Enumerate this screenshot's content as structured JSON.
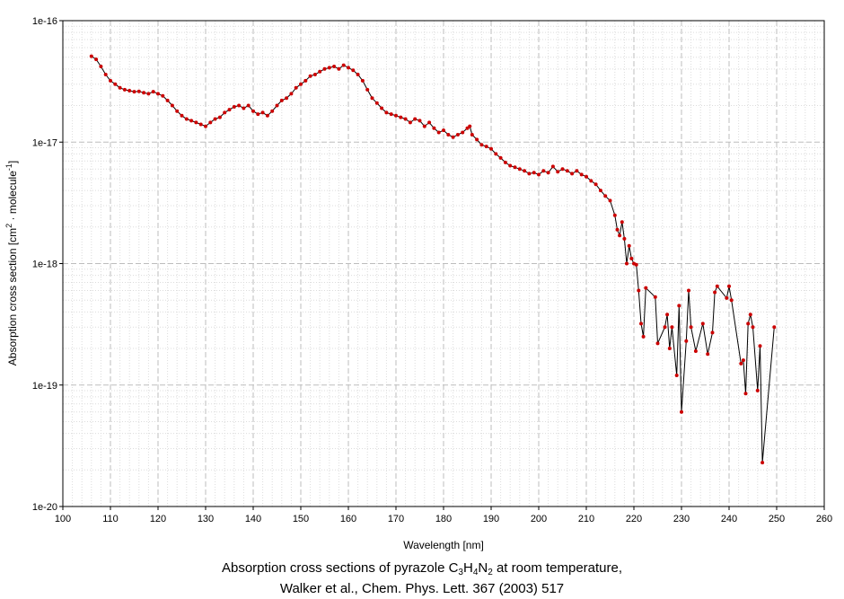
{
  "chart_data": {
    "type": "line",
    "xlabel": "Wavelength [nm]",
    "ylabel_main": "Absorption cross section [cm",
    "ylabel_sup1": "2",
    "ylabel_mid": " · molecule",
    "ylabel_sup2": "-1",
    "ylabel_end": "]",
    "xlim": [
      100,
      260
    ],
    "ylim": [
      1e-20,
      1e-16
    ],
    "yscale": "log",
    "grid": true,
    "x_ticks": [
      "100",
      "110",
      "120",
      "130",
      "140",
      "150",
      "160",
      "170",
      "180",
      "190",
      "200",
      "210",
      "220",
      "230",
      "240",
      "250",
      "260"
    ],
    "y_ticks": [
      "1e-20",
      "1e-19",
      "1e-18",
      "1e-17",
      "1e-16"
    ],
    "series": [
      {
        "name": "",
        "color": "#cc0000",
        "line_color": "#000000",
        "points": [
          [
            106,
            5.1e-17
          ],
          [
            107,
            4.8e-17
          ],
          [
            108,
            4.2e-17
          ],
          [
            109,
            3.6e-17
          ],
          [
            110,
            3.2e-17
          ],
          [
            111,
            3e-17
          ],
          [
            112,
            2.8e-17
          ],
          [
            113,
            2.7e-17
          ],
          [
            114,
            2.65e-17
          ],
          [
            115,
            2.6e-17
          ],
          [
            116,
            2.62e-17
          ],
          [
            117,
            2.55e-17
          ],
          [
            118,
            2.5e-17
          ],
          [
            119,
            2.6e-17
          ],
          [
            120,
            2.5e-17
          ],
          [
            121,
            2.4e-17
          ],
          [
            122,
            2.2e-17
          ],
          [
            123,
            2e-17
          ],
          [
            124,
            1.8e-17
          ],
          [
            125,
            1.65e-17
          ],
          [
            126,
            1.55e-17
          ],
          [
            127,
            1.5e-17
          ],
          [
            128,
            1.45e-17
          ],
          [
            129,
            1.4e-17
          ],
          [
            130,
            1.35e-17
          ],
          [
            131,
            1.45e-17
          ],
          [
            132,
            1.55e-17
          ],
          [
            133,
            1.6e-17
          ],
          [
            134,
            1.75e-17
          ],
          [
            135,
            1.85e-17
          ],
          [
            136,
            1.95e-17
          ],
          [
            137,
            2e-17
          ],
          [
            138,
            1.9e-17
          ],
          [
            139,
            2e-17
          ],
          [
            140,
            1.8e-17
          ],
          [
            141,
            1.7e-17
          ],
          [
            142,
            1.75e-17
          ],
          [
            143,
            1.65e-17
          ],
          [
            144,
            1.8e-17
          ],
          [
            145,
            2e-17
          ],
          [
            146,
            2.2e-17
          ],
          [
            147,
            2.3e-17
          ],
          [
            148,
            2.5e-17
          ],
          [
            149,
            2.8e-17
          ],
          [
            150,
            3e-17
          ],
          [
            151,
            3.2e-17
          ],
          [
            152,
            3.5e-17
          ],
          [
            153,
            3.6e-17
          ],
          [
            154,
            3.8e-17
          ],
          [
            155,
            4e-17
          ],
          [
            156,
            4.1e-17
          ],
          [
            157,
            4.2e-17
          ],
          [
            158,
            4e-17
          ],
          [
            159,
            4.3e-17
          ],
          [
            160,
            4.1e-17
          ],
          [
            161,
            3.9e-17
          ],
          [
            162,
            3.6e-17
          ],
          [
            163,
            3.2e-17
          ],
          [
            164,
            2.7e-17
          ],
          [
            165,
            2.3e-17
          ],
          [
            166,
            2.1e-17
          ],
          [
            167,
            1.9e-17
          ],
          [
            168,
            1.75e-17
          ],
          [
            169,
            1.7e-17
          ],
          [
            170,
            1.65e-17
          ],
          [
            171,
            1.6e-17
          ],
          [
            172,
            1.55e-17
          ],
          [
            173,
            1.45e-17
          ],
          [
            174,
            1.55e-17
          ],
          [
            175,
            1.5e-17
          ],
          [
            176,
            1.35e-17
          ],
          [
            177,
            1.45e-17
          ],
          [
            178,
            1.3e-17
          ],
          [
            179,
            1.2e-17
          ],
          [
            180,
            1.25e-17
          ],
          [
            181,
            1.15e-17
          ],
          [
            182,
            1.1e-17
          ],
          [
            183,
            1.15e-17
          ],
          [
            184,
            1.2e-17
          ],
          [
            185,
            1.3e-17
          ],
          [
            185.5,
            1.35e-17
          ],
          [
            186,
            1.15e-17
          ],
          [
            187,
            1.05e-17
          ],
          [
            188,
            9.5e-18
          ],
          [
            189,
            9.2e-18
          ],
          [
            190,
            8.8e-18
          ],
          [
            191,
            8e-18
          ],
          [
            192,
            7.4e-18
          ],
          [
            193,
            6.8e-18
          ],
          [
            194,
            6.4e-18
          ],
          [
            195,
            6.2e-18
          ],
          [
            196,
            6e-18
          ],
          [
            197,
            5.8e-18
          ],
          [
            198,
            5.5e-18
          ],
          [
            199,
            5.6e-18
          ],
          [
            200,
            5.4e-18
          ],
          [
            201,
            5.8e-18
          ],
          [
            202,
            5.6e-18
          ],
          [
            203,
            6.3e-18
          ],
          [
            204,
            5.7e-18
          ],
          [
            205,
            6e-18
          ],
          [
            206,
            5.8e-18
          ],
          [
            207,
            5.5e-18
          ],
          [
            208,
            5.8e-18
          ],
          [
            209,
            5.4e-18
          ],
          [
            210,
            5.2e-18
          ],
          [
            211,
            4.8e-18
          ],
          [
            212,
            4.5e-18
          ],
          [
            213,
            4e-18
          ],
          [
            214,
            3.6e-18
          ],
          [
            215,
            3.3e-18
          ],
          [
            216,
            2.5e-18
          ],
          [
            216.5,
            1.9e-18
          ],
          [
            217,
            1.7e-18
          ],
          [
            217.5,
            2.2e-18
          ],
          [
            218,
            1.6e-18
          ],
          [
            218.5,
            1e-18
          ],
          [
            219,
            1.4e-18
          ],
          [
            219.5,
            1.1e-18
          ],
          [
            220,
            1e-18
          ],
          [
            220.5,
            9.8e-19
          ],
          [
            221,
            6e-19
          ],
          [
            221.5,
            3.2e-19
          ],
          [
            222,
            2.5e-19
          ],
          [
            222.5,
            6.3e-19
          ],
          [
            224.5,
            5.3e-19
          ],
          [
            225,
            2.2e-19
          ],
          [
            226.5,
            3e-19
          ],
          [
            227,
            3.8e-19
          ],
          [
            227.5,
            2e-19
          ],
          [
            228,
            3e-19
          ],
          [
            229,
            1.2e-19
          ],
          [
            229.5,
            4.5e-19
          ],
          [
            230,
            6e-20
          ],
          [
            231,
            2.3e-19
          ],
          [
            231.5,
            6e-19
          ],
          [
            232,
            3e-19
          ],
          [
            233,
            1.9e-19
          ],
          [
            234.5,
            3.2e-19
          ],
          [
            235.5,
            1.8e-19
          ],
          [
            236.5,
            2.7e-19
          ],
          [
            237,
            5.8e-19
          ],
          [
            237.5,
            6.5e-19
          ],
          [
            239.5,
            5.2e-19
          ],
          [
            240,
            6.5e-19
          ],
          [
            240.5,
            5e-19
          ],
          [
            242.5,
            1.5e-19
          ],
          [
            243,
            1.6e-19
          ],
          [
            243.5,
            8.5e-20
          ],
          [
            244,
            3.2e-19
          ],
          [
            244.5,
            3.8e-19
          ],
          [
            245,
            3e-19
          ],
          [
            246,
            9e-20
          ],
          [
            246.5,
            2.1e-19
          ],
          [
            247,
            2.3e-20
          ],
          [
            249.5,
            3e-19
          ]
        ]
      }
    ]
  },
  "caption": {
    "line1_a": "Absorption cross sections of pyrazole C",
    "line1_s1": "3",
    "line1_b": "H",
    "line1_s2": "4",
    "line1_c": "N",
    "line1_s3": "2",
    "line1_d": " at room temperature,",
    "line2": "Walker et al., Chem. Phys. Lett. 367 (2003) 517"
  }
}
